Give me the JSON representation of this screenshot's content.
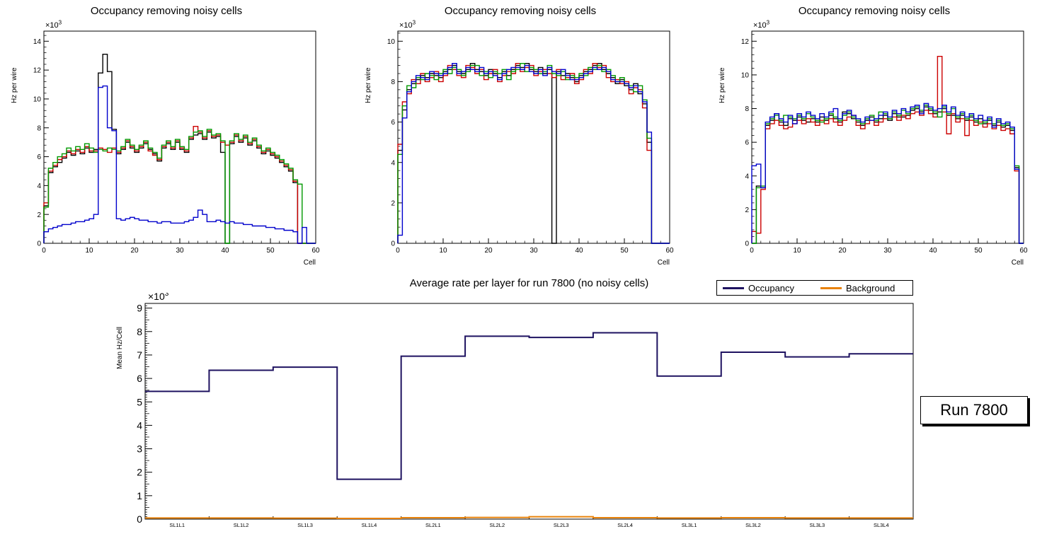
{
  "chart_data": [
    {
      "type": "bar",
      "subtype": "step-histogram",
      "title": "Occupancy removing noisy cells",
      "xlabel": "Cell",
      "ylabel": "Hz per wire",
      "y_scale_label": "×10",
      "y_scale_exponent": "3",
      "xlim": [
        0,
        60
      ],
      "ylim": [
        0,
        14.7
      ],
      "xticks": [
        0,
        10,
        20,
        30,
        40,
        50,
        60
      ],
      "yticks": [
        0,
        2,
        4,
        6,
        8,
        10,
        12,
        14
      ],
      "grid": false,
      "values_unit": "10^3 Hz per wire",
      "series": [
        {
          "name": "black",
          "color": "#000000",
          "values": [
            2.6,
            4.9,
            5.3,
            5.6,
            5.9,
            6.3,
            6.1,
            6.4,
            6.2,
            6.6,
            6.3,
            6.5,
            11.8,
            13.1,
            11.9,
            7.9,
            6.2,
            6.5,
            7.0,
            6.6,
            6.3,
            6.6,
            6.9,
            6.5,
            6.2,
            5.7,
            6.6,
            6.9,
            6.5,
            7.0,
            6.5,
            6.3,
            7.2,
            7.5,
            7.6,
            7.2,
            7.7,
            7.3,
            7.4,
            6.3,
            0,
            6.9,
            7.4,
            7.0,
            7.3,
            6.8,
            7.1,
            6.6,
            6.2,
            6.4,
            6.1,
            5.9,
            5.6,
            5.3,
            5.0,
            4.2,
            0,
            0,
            0,
            0
          ]
        },
        {
          "name": "red",
          "color": "#cc0000",
          "values": [
            2.8,
            5.0,
            5.4,
            5.8,
            6.0,
            6.4,
            6.2,
            6.5,
            6.3,
            6.7,
            6.4,
            6.4,
            6.6,
            6.5,
            6.3,
            6.6,
            6.3,
            6.6,
            7.1,
            6.7,
            6.4,
            6.7,
            7.0,
            6.4,
            6.1,
            5.8,
            6.7,
            7.0,
            6.6,
            7.1,
            6.6,
            6.4,
            7.3,
            8.1,
            7.7,
            7.3,
            7.8,
            7.4,
            7.5,
            7.0,
            6.8,
            7.0,
            7.5,
            7.1,
            7.4,
            6.9,
            7.2,
            6.7,
            6.3,
            6.5,
            6.2,
            6.0,
            5.7,
            5.4,
            5.1,
            4.3,
            0,
            0,
            0,
            0
          ]
        },
        {
          "name": "green",
          "color": "#009900",
          "values": [
            2.5,
            5.2,
            5.6,
            6.0,
            6.2,
            6.6,
            6.4,
            6.7,
            6.5,
            6.9,
            6.6,
            6.3,
            6.5,
            6.4,
            6.6,
            6.5,
            6.4,
            6.7,
            7.2,
            6.8,
            6.5,
            6.8,
            7.1,
            6.6,
            6.3,
            5.9,
            6.8,
            7.1,
            6.7,
            7.2,
            6.7,
            6.5,
            7.4,
            7.7,
            7.8,
            7.4,
            7.9,
            7.5,
            7.6,
            7.1,
            0,
            7.1,
            7.6,
            7.2,
            7.5,
            7.0,
            7.3,
            6.8,
            6.4,
            6.6,
            6.3,
            6.1,
            5.8,
            5.5,
            5.2,
            4.4,
            4.1,
            0,
            0,
            0
          ]
        },
        {
          "name": "blue",
          "color": "#0000cc",
          "values": [
            0.8,
            1.0,
            1.1,
            1.2,
            1.3,
            1.3,
            1.4,
            1.5,
            1.5,
            1.6,
            1.7,
            2.0,
            10.8,
            10.9,
            8.0,
            7.8,
            1.7,
            1.6,
            1.7,
            1.8,
            1.7,
            1.6,
            1.6,
            1.5,
            1.5,
            1.4,
            1.5,
            1.5,
            1.4,
            1.4,
            1.4,
            1.5,
            1.6,
            1.8,
            2.3,
            2.0,
            1.5,
            1.5,
            1.6,
            1.5,
            1.4,
            1.5,
            1.4,
            1.4,
            1.3,
            1.3,
            1.2,
            1.2,
            1.2,
            1.1,
            1.1,
            1.0,
            1.0,
            0.9,
            0.9,
            0.8,
            0,
            1.1,
            0,
            0
          ]
        }
      ]
    },
    {
      "type": "bar",
      "subtype": "step-histogram",
      "title": "Occupancy removing noisy cells",
      "xlabel": "Cell",
      "ylabel": "Hz per wire",
      "y_scale_label": "×10",
      "y_scale_exponent": "3",
      "xlim": [
        0,
        60
      ],
      "ylim": [
        0,
        10.5
      ],
      "xticks": [
        0,
        10,
        20,
        30,
        40,
        50,
        60
      ],
      "yticks": [
        0,
        2,
        4,
        6,
        8,
        10
      ],
      "grid": false,
      "values_unit": "10^3 Hz per wire",
      "series": [
        {
          "name": "black",
          "color": "#000000",
          "values": [
            4.6,
            6.6,
            7.6,
            7.9,
            8.1,
            8.3,
            8.2,
            8.4,
            8.3,
            8.2,
            8.5,
            8.6,
            8.8,
            8.5,
            8.4,
            8.6,
            8.9,
            8.6,
            8.5,
            8.3,
            8.6,
            8.4,
            8.2,
            8.5,
            8.3,
            8.6,
            8.8,
            8.7,
            8.9,
            8.6,
            8.5,
            8.7,
            8.4,
            8.6,
            0,
            8.5,
            8.3,
            8.4,
            8.2,
            8.0,
            8.3,
            8.5,
            8.6,
            8.8,
            8.9,
            8.6,
            8.4,
            8.2,
            7.9,
            8.1,
            7.8,
            7.6,
            7.9,
            7.4,
            6.9,
            5.0,
            0,
            0,
            0,
            0
          ]
        },
        {
          "name": "red",
          "color": "#cc0000",
          "values": [
            4.9,
            7.0,
            7.4,
            8.1,
            7.9,
            8.4,
            8.0,
            8.2,
            8.5,
            8.0,
            8.3,
            8.8,
            8.6,
            8.3,
            8.2,
            8.8,
            8.7,
            8.4,
            8.6,
            8.1,
            8.4,
            8.6,
            8.0,
            8.3,
            8.5,
            8.4,
            8.9,
            8.5,
            8.7,
            8.8,
            8.3,
            8.5,
            8.6,
            8.4,
            8.2,
            8.6,
            8.1,
            8.2,
            8.4,
            7.9,
            8.1,
            8.6,
            8.4,
            8.9,
            8.7,
            8.8,
            8.2,
            8.0,
            8.1,
            7.9,
            8.0,
            7.4,
            7.7,
            7.6,
            6.7,
            4.6,
            0,
            0,
            0,
            0
          ]
        },
        {
          "name": "green",
          "color": "#009900",
          "values": [
            4.4,
            6.8,
            7.8,
            7.7,
            8.2,
            8.1,
            8.4,
            8.3,
            8.1,
            8.4,
            8.6,
            8.4,
            8.7,
            8.6,
            8.3,
            8.5,
            8.8,
            8.8,
            8.3,
            8.5,
            8.2,
            8.5,
            8.4,
            8.6,
            8.1,
            8.5,
            8.6,
            8.9,
            8.5,
            8.7,
            8.6,
            8.4,
            8.5,
            8.8,
            8.4,
            8.3,
            8.5,
            8.1,
            8.3,
            8.2,
            8.4,
            8.3,
            8.7,
            8.6,
            8.8,
            8.5,
            8.6,
            8.3,
            8.0,
            8.2,
            7.9,
            7.8,
            7.5,
            7.8,
            7.1,
            5.2,
            0,
            0,
            0,
            0
          ]
        },
        {
          "name": "blue",
          "color": "#0000cc",
          "values": [
            0.4,
            6.2,
            7.5,
            8.0,
            8.3,
            8.2,
            8.1,
            8.5,
            8.4,
            8.3,
            8.4,
            8.7,
            8.9,
            8.4,
            8.5,
            8.7,
            8.6,
            8.5,
            8.7,
            8.4,
            8.5,
            8.3,
            8.1,
            8.4,
            8.6,
            8.7,
            8.7,
            8.6,
            8.8,
            8.5,
            8.4,
            8.6,
            8.3,
            8.7,
            8.5,
            8.4,
            8.6,
            8.3,
            8.1,
            8.1,
            8.2,
            8.4,
            8.5,
            8.7,
            8.6,
            8.7,
            8.5,
            8.1,
            8.0,
            8.0,
            7.9,
            7.7,
            7.8,
            7.5,
            7.0,
            5.5,
            0,
            0,
            0,
            0
          ]
        }
      ]
    },
    {
      "type": "bar",
      "subtype": "step-histogram",
      "title": "Occupancy removing noisy cells",
      "xlabel": "Cell",
      "ylabel": "Hz per wire",
      "y_scale_label": "×10",
      "y_scale_exponent": "3",
      "xlim": [
        0,
        60
      ],
      "ylim": [
        0,
        12.6
      ],
      "xticks": [
        0,
        10,
        20,
        30,
        40,
        50,
        60
      ],
      "yticks": [
        0,
        2,
        4,
        6,
        8,
        10,
        12
      ],
      "grid": false,
      "values_unit": "10^3 Hz per wire",
      "series": [
        {
          "name": "black",
          "color": "#000000",
          "values": [
            0,
            3.4,
            3.3,
            7.0,
            7.3,
            7.7,
            7.2,
            7.0,
            7.4,
            7.3,
            7.5,
            7.3,
            7.2,
            7.4,
            7.2,
            7.5,
            7.3,
            7.6,
            7.4,
            7.2,
            7.8,
            7.7,
            7.4,
            7.2,
            7.0,
            7.3,
            7.5,
            7.2,
            7.4,
            7.6,
            7.3,
            7.7,
            7.5,
            7.5,
            7.6,
            7.9,
            8.0,
            7.8,
            8.1,
            7.9,
            7.7,
            7.8,
            8.0,
            7.6,
            7.6,
            7.4,
            7.6,
            7.3,
            7.5,
            7.2,
            7.4,
            7.1,
            7.3,
            7.0,
            7.2,
            6.9,
            7.0,
            6.7,
            4.5,
            0
          ]
        },
        {
          "name": "red",
          "color": "#cc0000",
          "values": [
            0.7,
            0.6,
            3.2,
            6.8,
            7.1,
            7.3,
            7.0,
            6.8,
            6.9,
            7.1,
            7.3,
            7.1,
            7.4,
            7.2,
            7.0,
            7.3,
            7.1,
            7.4,
            7.2,
            7.0,
            7.3,
            7.5,
            7.6,
            7.0,
            6.8,
            7.1,
            7.3,
            7.0,
            7.2,
            7.4,
            7.4,
            7.5,
            7.3,
            7.6,
            7.4,
            7.7,
            7.8,
            7.6,
            7.9,
            7.7,
            7.5,
            11.1,
            7.8,
            6.5,
            7.7,
            7.2,
            7.4,
            6.4,
            7.3,
            7.0,
            7.2,
            6.9,
            7.1,
            6.8,
            7.0,
            6.7,
            6.8,
            6.5,
            4.3,
            0
          ]
        },
        {
          "name": "green",
          "color": "#009900",
          "values": [
            0,
            3.3,
            3.4,
            7.1,
            7.4,
            7.6,
            7.3,
            7.6,
            7.5,
            7.4,
            7.6,
            7.4,
            7.7,
            7.5,
            7.3,
            7.2,
            7.4,
            7.7,
            7.5,
            7.3,
            7.6,
            7.8,
            7.5,
            7.3,
            7.1,
            7.4,
            7.6,
            7.3,
            7.8,
            7.7,
            7.4,
            7.8,
            7.6,
            7.9,
            7.7,
            8.0,
            8.1,
            7.9,
            8.2,
            8.0,
            7.8,
            7.5,
            8.1,
            7.7,
            8.0,
            7.5,
            7.7,
            7.4,
            7.6,
            7.3,
            7.1,
            7.2,
            7.4,
            7.1,
            7.3,
            7.0,
            7.1,
            6.8,
            4.6,
            0
          ]
        },
        {
          "name": "blue",
          "color": "#0000cc",
          "values": [
            4.6,
            4.7,
            3.3,
            7.2,
            7.5,
            7.7,
            7.4,
            7.2,
            7.6,
            7.1,
            7.7,
            7.5,
            7.8,
            7.6,
            7.4,
            7.7,
            7.5,
            7.8,
            8.0,
            7.4,
            7.7,
            7.9,
            7.6,
            7.4,
            7.2,
            7.5,
            7.3,
            7.4,
            7.6,
            7.8,
            7.5,
            7.9,
            7.7,
            8.0,
            7.8,
            8.1,
            8.2,
            7.7,
            8.3,
            8.1,
            7.9,
            8.0,
            8.2,
            7.8,
            8.1,
            7.6,
            7.8,
            7.5,
            7.7,
            7.4,
            7.6,
            7.3,
            7.5,
            6.9,
            7.4,
            7.1,
            7.2,
            6.9,
            4.4,
            0
          ]
        }
      ]
    },
    {
      "type": "line",
      "subtype": "step-line",
      "title": "Average rate per layer for run 7800 (no noisy cells)",
      "ylabel": "Mean Hz/Cell",
      "y_scale_label": "×10",
      "y_scale_exponent": "3",
      "categories": [
        "SL1L1",
        "SL1L2",
        "SL1L3",
        "SL1L4",
        "SL2L1",
        "SL2L2",
        "SL2L3",
        "SL2L4",
        "SL3L1",
        "SL3L2",
        "SL3L3",
        "SL3L4"
      ],
      "ylim": [
        0,
        9.2
      ],
      "yticks": [
        0,
        1,
        2,
        3,
        4,
        5,
        6,
        7,
        8,
        9
      ],
      "grid": false,
      "legend_position": "top-right",
      "values_unit": "10^3 Hz per cell",
      "series": [
        {
          "name": "Occupancy",
          "color": "#1e1260",
          "values": [
            5.45,
            6.35,
            6.48,
            1.7,
            6.95,
            7.8,
            7.75,
            7.95,
            6.1,
            7.12,
            6.92,
            7.05
          ]
        },
        {
          "name": "Background",
          "color": "#e8820a",
          "values": [
            0.05,
            0.05,
            0.04,
            0.03,
            0.06,
            0.07,
            0.1,
            0.06,
            0.05,
            0.06,
            0.05,
            0.05
          ]
        }
      ]
    }
  ],
  "legend": {
    "entries": [
      {
        "label": "Occupancy",
        "color": "#1e1260"
      },
      {
        "label": "Background",
        "color": "#e8820a"
      }
    ]
  },
  "run_box": {
    "label": "Run 7800"
  }
}
